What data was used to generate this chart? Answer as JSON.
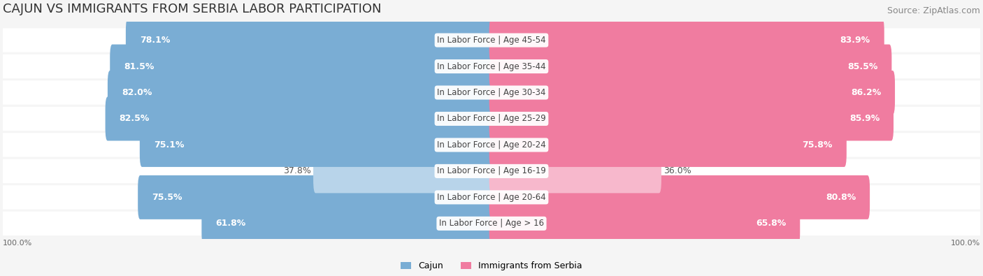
{
  "title": "CAJUN VS IMMIGRANTS FROM SERBIA LABOR PARTICIPATION",
  "source": "Source: ZipAtlas.com",
  "categories": [
    "In Labor Force | Age > 16",
    "In Labor Force | Age 20-64",
    "In Labor Force | Age 16-19",
    "In Labor Force | Age 20-24",
    "In Labor Force | Age 25-29",
    "In Labor Force | Age 30-34",
    "In Labor Force | Age 35-44",
    "In Labor Force | Age 45-54"
  ],
  "cajun_values": [
    61.8,
    75.5,
    37.8,
    75.1,
    82.5,
    82.0,
    81.5,
    78.1
  ],
  "serbia_values": [
    65.8,
    80.8,
    36.0,
    75.8,
    85.9,
    86.2,
    85.5,
    83.9
  ],
  "cajun_color": "#7aadd4",
  "serbia_color": "#f07ca0",
  "cajun_color_light": "#b8d4ea",
  "serbia_color_light": "#f7b8cc",
  "background_color": "#f5f5f5",
  "row_bg_color": "#eeeeee",
  "label_bg_color": "#ffffff",
  "title_fontsize": 13,
  "source_fontsize": 9,
  "bar_label_fontsize": 9,
  "category_fontsize": 8.5,
  "legend_fontsize": 9,
  "axis_label_fontsize": 8
}
